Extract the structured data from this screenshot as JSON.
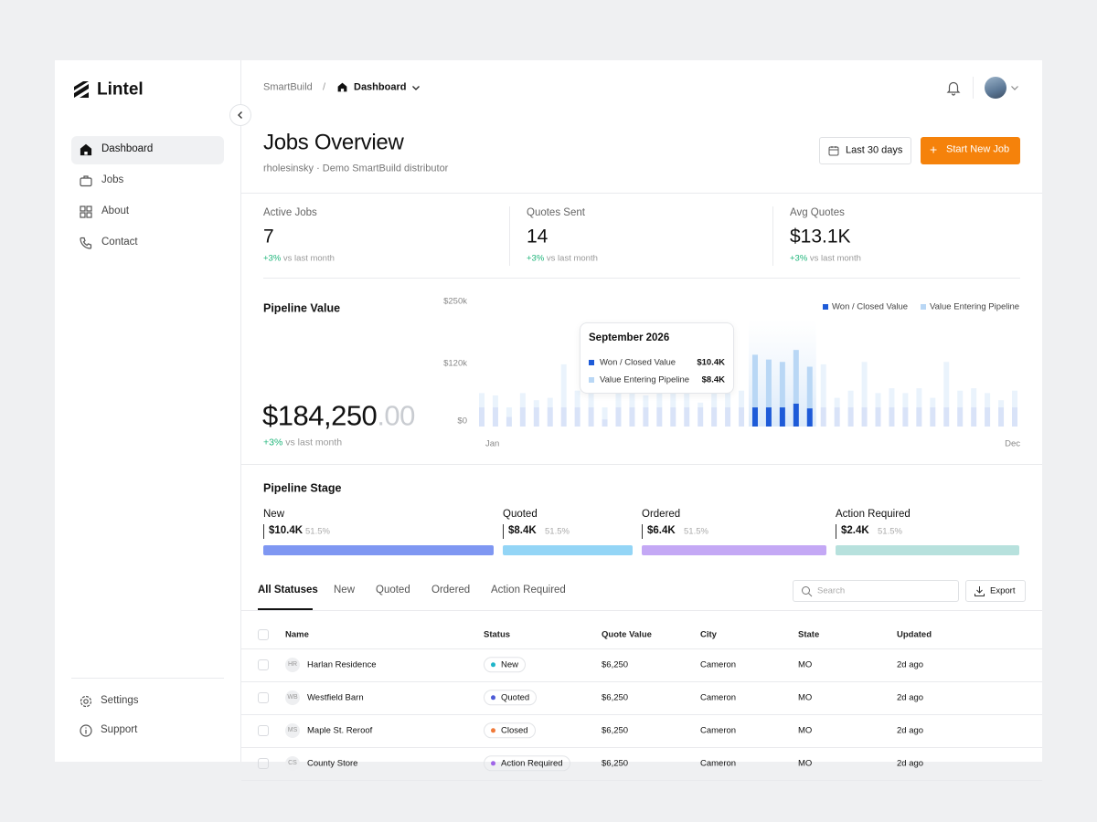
{
  "sidebar": {
    "brand": "Lintel",
    "nav": [
      {
        "label": "Dashboard",
        "active": true
      },
      {
        "label": "Jobs",
        "active": false
      },
      {
        "label": "About",
        "active": false
      },
      {
        "label": "Contact",
        "active": false
      }
    ],
    "footer_nav": [
      "Settings",
      "Support"
    ]
  },
  "topbar": {
    "breadcrumb_root": "SmartBuild",
    "separator": "/",
    "breadcrumb_current": "Dashboard"
  },
  "header": {
    "title": "Jobs Overview",
    "subtitle": "rholesinsky · Demo SmartBuild distributor",
    "date_range": "Last 30 days",
    "primary_icon": "+",
    "primary_action": "Start New Job"
  },
  "stats": [
    {
      "label": "Active Jobs",
      "value": "7",
      "change": "+3%",
      "note": "vs last month"
    },
    {
      "label": "Quotes Sent",
      "value": "14",
      "change": "+3%",
      "note": "vs last month"
    },
    {
      "label": "Avg Quotes",
      "value": "$13.1K",
      "change": "+3%",
      "note": "vs last month"
    }
  ],
  "pipeline_value": {
    "title": "Pipeline Value",
    "total": "$184,250",
    "total_cents": ".00",
    "change": "+3%",
    "note": "vs last month"
  },
  "chart_data": {
    "type": "bar",
    "stacked": true,
    "ylim": [
      0,
      250000
    ],
    "yticks": [
      {
        "value": 0,
        "label": "$0"
      },
      {
        "value": 120000,
        "label": "$120k"
      },
      {
        "value": 250000,
        "label": "$250k"
      }
    ],
    "categories": [
      "Jan",
      null,
      null,
      null,
      null,
      null,
      null,
      null,
      null,
      null,
      null,
      null,
      null,
      null,
      null,
      null,
      null,
      null,
      null,
      null,
      null,
      null,
      null,
      null,
      null,
      null,
      null,
      null,
      null,
      null,
      null,
      null,
      null,
      null,
      null,
      null,
      null,
      null,
      null,
      "Dec"
    ],
    "series": [
      {
        "name": "Won / Closed Value",
        "color": "#1e5bd8",
        "values": [
          40000,
          40000,
          20000,
          40000,
          40000,
          40000,
          40000,
          40000,
          40000,
          15000,
          40000,
          40000,
          40000,
          40000,
          40000,
          40000,
          40000,
          40000,
          40000,
          40000,
          40000,
          40000,
          40000,
          48000,
          38000,
          40000,
          40000,
          40000,
          40000,
          40000,
          40000,
          40000,
          40000,
          40000,
          40000,
          40000,
          40000,
          40000,
          40000,
          40000
        ]
      },
      {
        "name": "Value Entering Pipeline",
        "color": "#b9d7f5",
        "values": [
          30000,
          25000,
          20000,
          30000,
          15000,
          20000,
          90000,
          35000,
          120000,
          25000,
          35000,
          40000,
          25000,
          105000,
          45000,
          30000,
          10000,
          90000,
          30000,
          35000,
          110000,
          100000,
          95000,
          112000,
          87000,
          90000,
          20000,
          35000,
          95000,
          30000,
          40000,
          30000,
          40000,
          20000,
          95000,
          35000,
          40000,
          30000,
          15000,
          35000
        ]
      }
    ],
    "highlight": {
      "from": 20,
      "to": 24
    },
    "legend": "top-right",
    "tooltip": {
      "title": "September 2026",
      "values": [
        "$10.4K",
        "$8.4K"
      ]
    }
  },
  "pipeline_stage": {
    "title": "Pipeline Stage",
    "stages": [
      {
        "name": "New",
        "value": "$10.4K",
        "share": "51.5%",
        "color": "#7f97f2"
      },
      {
        "name": "Quoted",
        "value": "$8.4K",
        "share": "51.5%",
        "color": "#93d5f6"
      },
      {
        "name": "Ordered",
        "value": "$6.4K",
        "share": "51.5%",
        "color": "#c4a8f5"
      },
      {
        "name": "Action Required",
        "value": "$2.4K",
        "share": "51.5%",
        "color": "#b7e1dd"
      }
    ]
  },
  "table": {
    "tabs": [
      "All Statuses",
      "New",
      "Quoted",
      "Ordered",
      "Action Required"
    ],
    "active_tab": 0,
    "search_placeholder": "Search",
    "export": "Export",
    "columns": [
      "Name",
      "Status",
      "Quote Value",
      "City",
      "State",
      "Updated"
    ],
    "rows": [
      {
        "initials": "HR",
        "name": "Harlan Residence",
        "status": "New",
        "status_color": "#1fb5c9",
        "quote_value": "$6,250",
        "city": "Cameron",
        "state": "MO",
        "updated": "2d ago"
      },
      {
        "initials": "WB",
        "name": "Westfield Barn",
        "status": "Quoted",
        "status_color": "#4d5bd6",
        "quote_value": "$6,250",
        "city": "Cameron",
        "state": "MO",
        "updated": "2d ago"
      },
      {
        "initials": "MS",
        "name": "Maple St. Reroof",
        "status": "Closed",
        "status_color": "#f07a3a",
        "quote_value": "$6,250",
        "city": "Cameron",
        "state": "MO",
        "updated": "2d ago"
      },
      {
        "initials": "CS",
        "name": "County Store",
        "status": "Action Required",
        "status_color": "#a066e8",
        "quote_value": "$6,250",
        "city": "Cameron",
        "state": "MO",
        "updated": "2d ago"
      }
    ]
  }
}
